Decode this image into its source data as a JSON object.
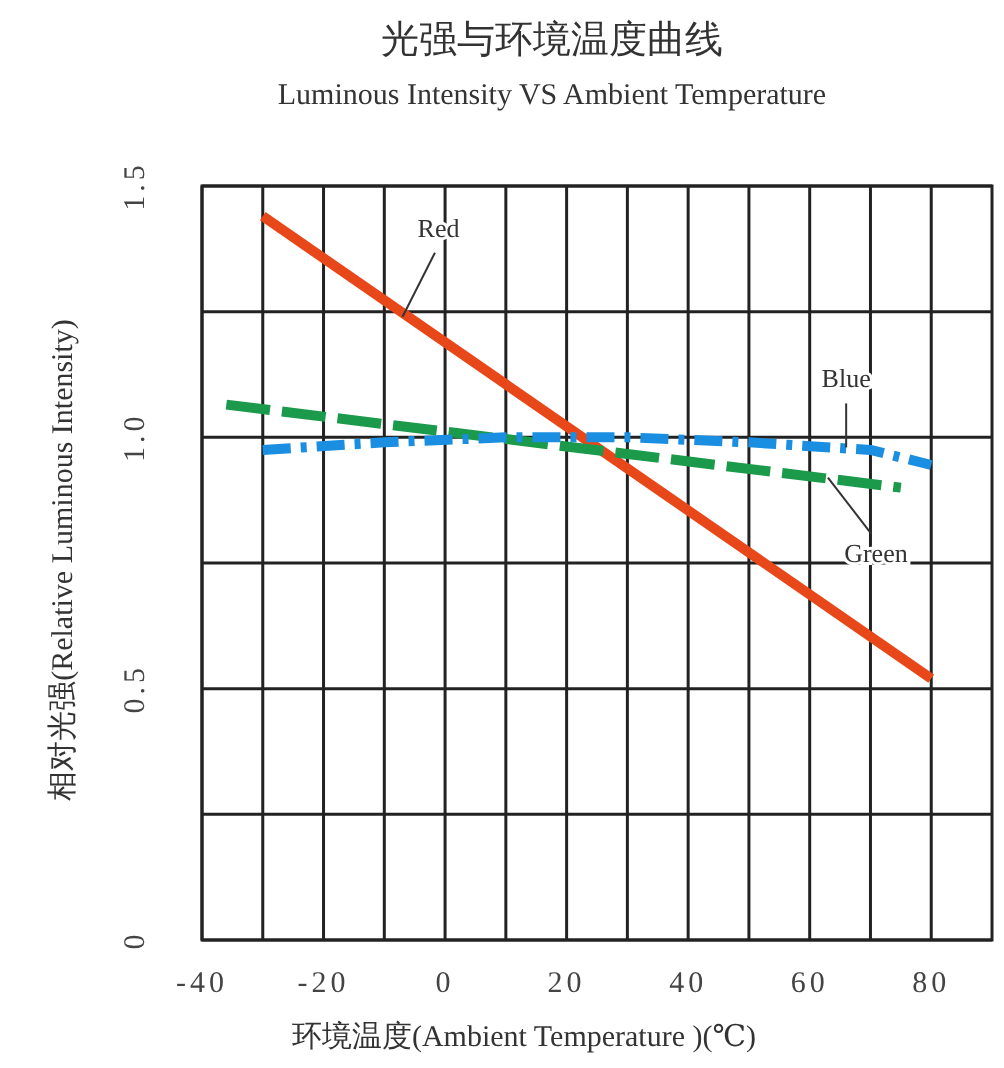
{
  "chart_data": {
    "type": "line",
    "title": "光强与环境温度曲线",
    "subtitle": "Luminous Intensity VS Ambient Temperature",
    "xlabel": "环境温度(Ambient Temperature )(℃)",
    "ylabel": "相对光强(Relative Luminous Intensity)",
    "xlim": [
      -40,
      90
    ],
    "ylim": [
      0,
      1.5
    ],
    "xticks": [
      -40,
      {
        "value": -30,
        "label": null
      },
      -20,
      {
        "value": -10,
        "label": null
      },
      0,
      {
        "value": 10,
        "label": null
      },
      20,
      {
        "value": 30,
        "label": null
      },
      40,
      {
        "value": 50,
        "label": null
      },
      60,
      {
        "value": 70,
        "label": null
      },
      80
    ],
    "yticks": [
      0,
      {
        "value": 0.25,
        "label": null
      },
      {
        "value": 0.5,
        "label": "0.5"
      },
      {
        "value": 0.75,
        "label": null
      },
      {
        "value": 1,
        "label": "1.0"
      },
      {
        "value": 1.25,
        "label": null
      },
      {
        "value": 1.5,
        "label": "1.5"
      }
    ],
    "grid": true,
    "series": [
      {
        "color": "#e8471a",
        "line_style": "solid",
        "x": [
          -30,
          80
        ],
        "values": [
          1.44,
          0.52
        ]
      },
      {
        "color": "#1a9a4a",
        "line_style": "dashed",
        "x": [
          -36,
          75
        ],
        "values": [
          1.065,
          0.9
        ]
      },
      {
        "color": "#1a8ee0",
        "line_style": "dashdot",
        "x": [
          -30,
          -10,
          10,
          30,
          50,
          70,
          80
        ],
        "values": [
          0.975,
          0.99,
          1.0,
          1.0,
          0.99,
          0.975,
          0.945
        ]
      }
    ],
    "annotations": [
      {
        "text": "Red",
        "x": -7,
        "y": 1.24
      },
      {
        "text": "Blue",
        "x": 66,
        "y": 0.98
      },
      {
        "text": "Green",
        "x": 63,
        "y": 0.92
      }
    ]
  }
}
